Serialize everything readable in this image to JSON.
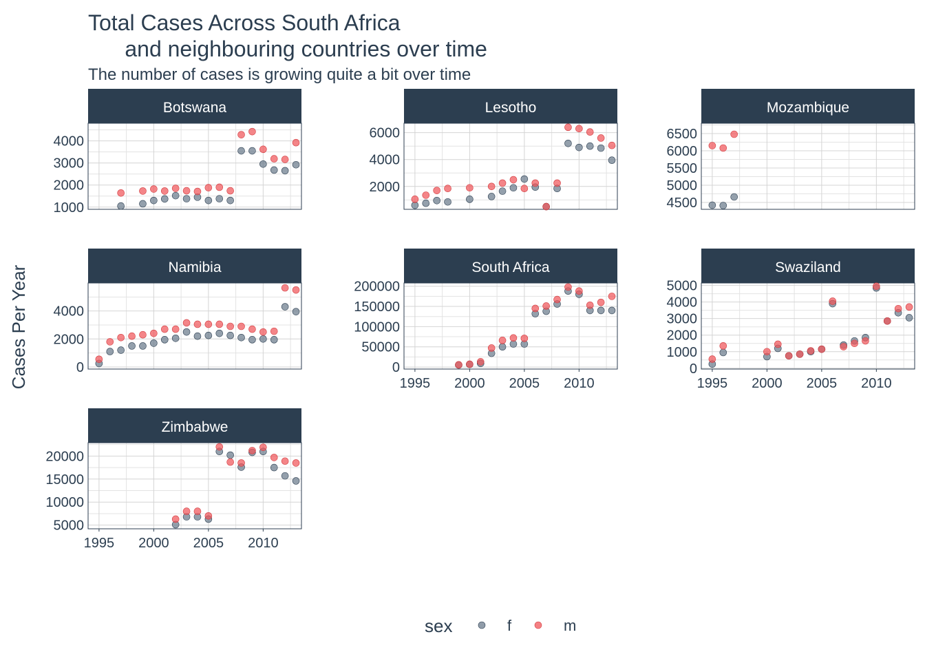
{
  "chart_data": {
    "type": "scatter",
    "title": "Total Cases Across South Africa\n      and neighbouring countries over time",
    "subtitle": "The number of cases is growing quite a bit over time",
    "xlabel": "",
    "ylabel": "Cases Per Year",
    "xlim": [
      1994,
      2013.5
    ],
    "x_ticks": [
      1995,
      2000,
      2005,
      2010
    ],
    "grid": true,
    "legend": {
      "title": "sex",
      "position": "bottom",
      "entries": [
        "f",
        "m"
      ]
    },
    "colors": {
      "f": "#6b7b8c",
      "m": "#f0565a",
      "strip": "#2c3e50",
      "text": "#2c3e50",
      "grid": "#d4d4d4"
    },
    "panels": [
      {
        "name": "Botswana",
        "ylim": [
          900,
          4800
        ],
        "y_ticks": [
          1000,
          2000,
          3000,
          4000
        ],
        "series": [
          {
            "name": "f",
            "x": [
              1997,
              1999,
              2000,
              2001,
              2002,
              2003,
              2004,
              2005,
              2006,
              2007,
              2008,
              2009,
              2010,
              2011,
              2012,
              2013
            ],
            "y": [
              1050,
              1150,
              1300,
              1370,
              1520,
              1380,
              1450,
              1300,
              1380,
              1300,
              3550,
              3550,
              2950,
              2680,
              2650,
              2920
            ]
          },
          {
            "name": "m",
            "x": [
              1997,
              1999,
              2000,
              2001,
              2002,
              2003,
              2004,
              2005,
              2006,
              2007,
              2008,
              2009,
              2010,
              2011,
              2012,
              2013
            ],
            "y": [
              1640,
              1730,
              1820,
              1730,
              1850,
              1740,
              1710,
              1880,
              1900,
              1740,
              4280,
              4420,
              3620,
              3190,
              3160,
              3920
            ]
          }
        ]
      },
      {
        "name": "Lesotho",
        "ylim": [
          300,
          6700
        ],
        "y_ticks": [
          2000,
          4000,
          6000
        ],
        "series": [
          {
            "name": "f",
            "x": [
              1995,
              1996,
              1997,
              1998,
              2000,
              2002,
              2003,
              2004,
              2005,
              2006,
              2007,
              2008,
              2009,
              2010,
              2011,
              2012,
              2013
            ],
            "y": [
              600,
              750,
              950,
              850,
              1050,
              1250,
              1650,
              1900,
              2550,
              1950,
              500,
              1850,
              5200,
              4900,
              5000,
              4850,
              3950
            ]
          },
          {
            "name": "m",
            "x": [
              1995,
              1996,
              1997,
              1998,
              2000,
              2002,
              2003,
              2004,
              2005,
              2006,
              2007,
              2008,
              2009,
              2010,
              2011,
              2012,
              2013
            ],
            "y": [
              1050,
              1350,
              1700,
              1850,
              1900,
              2000,
              2250,
              2500,
              1850,
              2250,
              500,
              2250,
              6400,
              6300,
              6050,
              5600,
              5050
            ]
          }
        ]
      },
      {
        "name": "Mozambique",
        "ylim": [
          4300,
          6800
        ],
        "y_ticks": [
          4500,
          5000,
          5500,
          6000,
          6500
        ],
        "series": [
          {
            "name": "f",
            "x": [
              1995,
              1996,
              1997
            ],
            "y": [
              4420,
              4410,
              4660
            ]
          },
          {
            "name": "m",
            "x": [
              1995,
              1996,
              1997
            ],
            "y": [
              6150,
              6080,
              6480
            ]
          }
        ]
      },
      {
        "name": "Namibia",
        "ylim": [
          -150,
          6000
        ],
        "y_ticks": [
          0,
          2000,
          4000
        ],
        "series": [
          {
            "name": "f",
            "x": [
              1995,
              1996,
              1997,
              1998,
              1999,
              2000,
              2001,
              2002,
              2003,
              2004,
              2005,
              2006,
              2007,
              2008,
              2009,
              2010,
              2011,
              2012,
              2013
            ],
            "y": [
              250,
              1100,
              1200,
              1500,
              1500,
              1700,
              1950,
              2050,
              2500,
              2200,
              2250,
              2400,
              2250,
              2100,
              1950,
              2000,
              1950,
              4300,
              3950
            ]
          },
          {
            "name": "m",
            "x": [
              1995,
              1996,
              1997,
              1998,
              1999,
              2000,
              2001,
              2002,
              2003,
              2004,
              2005,
              2006,
              2007,
              2008,
              2009,
              2010,
              2011,
              2012,
              2013
            ],
            "y": [
              550,
              1800,
              2100,
              2200,
              2300,
              2400,
              2700,
              2700,
              3150,
              3050,
              3050,
              3050,
              2900,
              2900,
              2700,
              2500,
              2550,
              5650,
              5500
            ]
          }
        ]
      },
      {
        "name": "South Africa",
        "ylim": [
          -5000,
          208000
        ],
        "y_ticks": [
          0,
          50000,
          100000,
          150000,
          200000
        ],
        "series": [
          {
            "name": "f",
            "x": [
              1999,
              2000,
              2001,
              2002,
              2003,
              2004,
              2005,
              2006,
              2007,
              2008,
              2009,
              2010,
              2011,
              2012,
              2013
            ],
            "y": [
              5000,
              6500,
              9000,
              34000,
              50000,
              57000,
              57000,
              132000,
              138000,
              156000,
              188000,
              180000,
              140000,
              140000,
              140000
            ]
          },
          {
            "name": "m",
            "x": [
              1999,
              2000,
              2001,
              2002,
              2003,
              2004,
              2005,
              2006,
              2007,
              2008,
              2009,
              2010,
              2011,
              2012,
              2013
            ],
            "y": [
              5500,
              7000,
              13000,
              47000,
              66000,
              72000,
              71000,
              145000,
              151000,
              167000,
              198000,
              188000,
              153000,
              160000,
              175000
            ]
          }
        ]
      },
      {
        "name": "Swaziland",
        "ylim": [
          -50,
          5150
        ],
        "y_ticks": [
          0,
          1000,
          2000,
          3000,
          4000,
          5000
        ],
        "series": [
          {
            "name": "f",
            "x": [
              1995,
              1996,
              2000,
              2001,
              2002,
              2003,
              2004,
              2005,
              2006,
              2007,
              2008,
              2009,
              2010,
              2011,
              2012,
              2013
            ],
            "y": [
              250,
              950,
              700,
              1200,
              750,
              850,
              1000,
              1150,
              3900,
              1400,
              1650,
              1850,
              4850,
              2850,
              3350,
              3050
            ]
          },
          {
            "name": "m",
            "x": [
              1995,
              1996,
              2000,
              2001,
              2002,
              2003,
              2004,
              2005,
              2006,
              2007,
              2008,
              2009,
              2010,
              2011,
              2012,
              2013
            ],
            "y": [
              550,
              1350,
              1000,
              1450,
              750,
              850,
              1050,
              1150,
              4050,
              1300,
              1500,
              1650,
              4950,
              2850,
              3600,
              3700
            ]
          }
        ]
      },
      {
        "name": "Zimbabwe",
        "ylim": [
          4200,
          22900
        ],
        "y_ticks": [
          5000,
          10000,
          15000,
          20000
        ],
        "series": [
          {
            "name": "f",
            "x": [
              2002,
              2003,
              2004,
              2005,
              2006,
              2007,
              2008,
              2009,
              2010,
              2011,
              2012,
              2013
            ],
            "y": [
              5100,
              6800,
              6800,
              6300,
              21000,
              20200,
              17600,
              20800,
              21000,
              17500,
              15700,
              14600
            ]
          },
          {
            "name": "m",
            "x": [
              2002,
              2003,
              2004,
              2005,
              2006,
              2007,
              2008,
              2009,
              2010,
              2011,
              2012,
              2013
            ],
            "y": [
              6300,
              8000,
              8000,
              7000,
              22000,
              18700,
              18500,
              21200,
              21900,
              19700,
              18900,
              18500
            ]
          }
        ]
      }
    ]
  }
}
